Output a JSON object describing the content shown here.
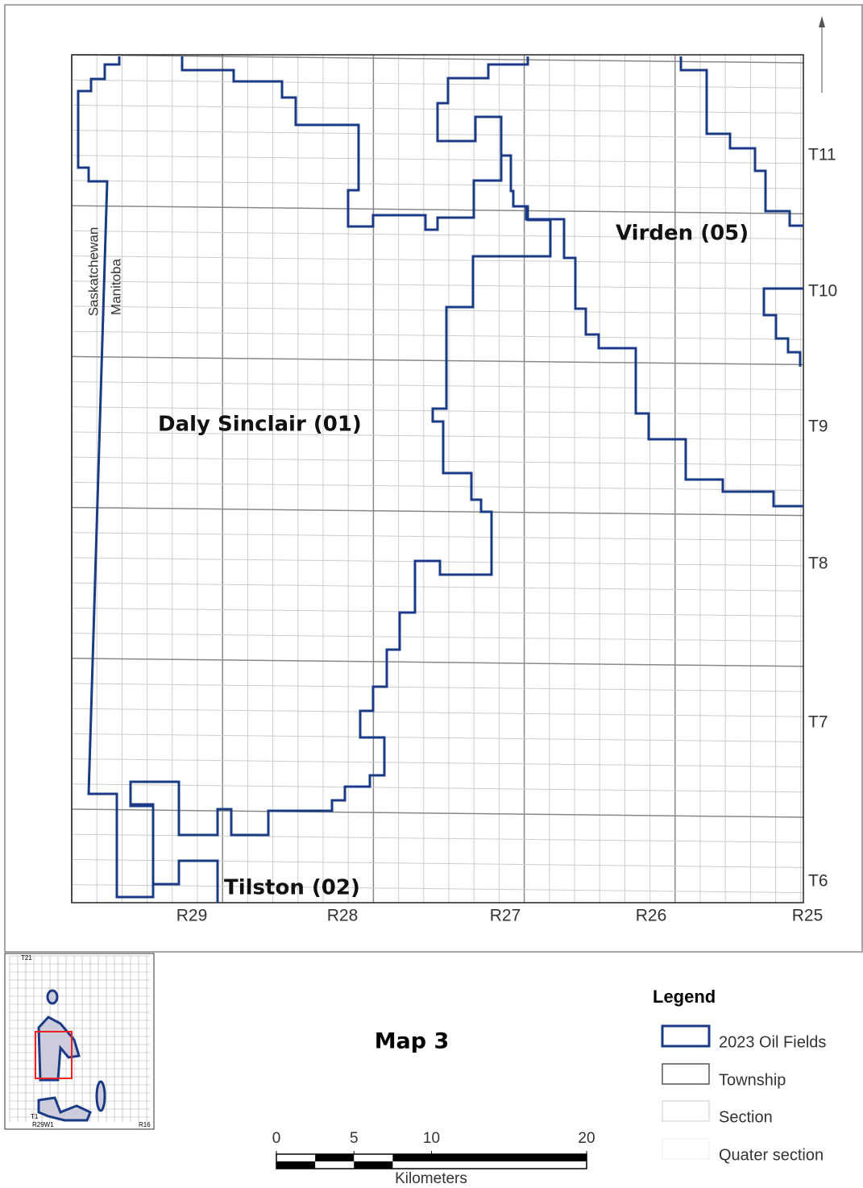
{
  "map": {
    "townships": [
      "T11",
      "T10",
      "T9",
      "T8",
      "T7",
      "T6"
    ],
    "ranges": [
      "R29",
      "R28",
      "R27",
      "R26",
      "R25"
    ],
    "fields": [
      "Virden (05)",
      "Daly Sinclair (01)",
      "Tilston (02)"
    ],
    "provinces": [
      "Saskatchewan",
      "Manitoba"
    ]
  },
  "inset": {
    "labels": [
      "T21",
      "T1",
      "R29W1",
      "R16"
    ]
  },
  "title": "Map 3",
  "legend": {
    "title": "Legend",
    "items": [
      "2023 Oil Fields",
      "Township",
      "Section",
      "Quater section"
    ]
  },
  "scale_bar": {
    "ticks": [
      0,
      5,
      10,
      20
    ],
    "unit": "Kilometers"
  }
}
